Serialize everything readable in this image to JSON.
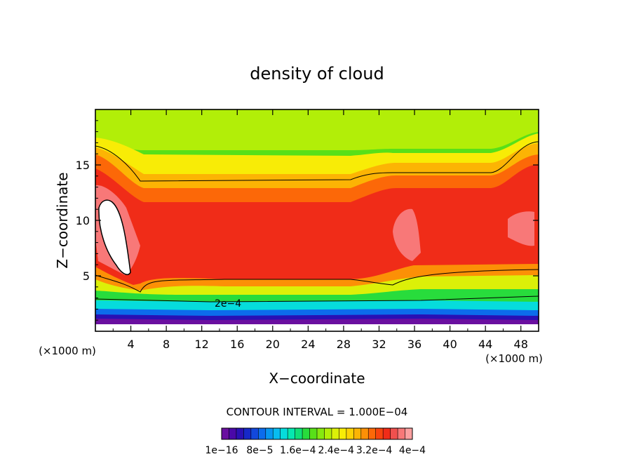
{
  "chart_data": {
    "type": "heatmap",
    "title": "density of cloud",
    "xlabel": "X−coordinate",
    "ylabel": "Z−coordinate",
    "x_unit_left": "(×1000 m)",
    "x_unit_right": "(×1000 m)",
    "xlim": [
      0,
      50
    ],
    "ylim": [
      0,
      20
    ],
    "xticks": [
      4,
      8,
      12,
      16,
      20,
      24,
      28,
      32,
      36,
      40,
      44,
      48
    ],
    "yticks": [
      5,
      10,
      15
    ],
    "contour_interval_text": "CONTOUR INTERVAL = 1.000E−04",
    "contour_label": "2e−4",
    "colorbar": {
      "colors": [
        "#6a0fa0",
        "#4a08a8",
        "#2a10b4",
        "#1628c8",
        "#1248dc",
        "#0c6cec",
        "#0896f0",
        "#08bcf0",
        "#06dcdc",
        "#06e8b0",
        "#10e078",
        "#28dc3c",
        "#58e018",
        "#86e810",
        "#b2ee08",
        "#dcf008",
        "#f8ec06",
        "#fcd204",
        "#fcb404",
        "#fc9006",
        "#fc6808",
        "#f8440e",
        "#f02c18",
        "#f0504e",
        "#f87878",
        "#fca0a0"
      ],
      "labels": [
        "1e−16",
        "8e−5",
        "1.6e−4",
        "2.4e−4",
        "3.2e−4",
        "4e−4"
      ],
      "min": 0,
      "max": 0.0004
    }
  }
}
